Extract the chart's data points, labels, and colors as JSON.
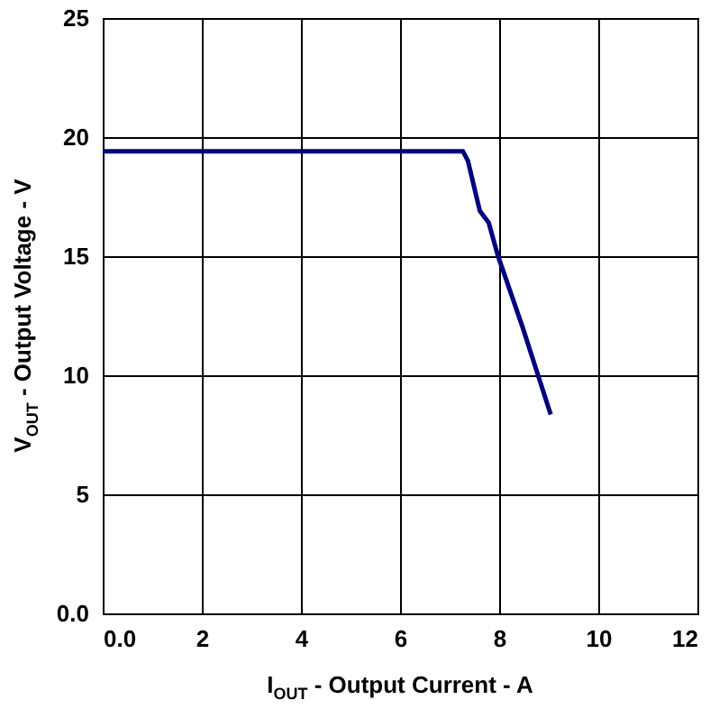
{
  "chart_data": {
    "type": "line",
    "xlabel": "I$_{OUT}$ - Output Current - A",
    "ylabel": "V$_{OUT}$ - Output Voltage - V",
    "x": [
      0,
      7.27,
      7.37,
      7.61,
      7.79,
      7.97,
      8.46,
      9.04
    ],
    "series": [
      {
        "color": "#000080",
        "values": [
          19.4,
          19.4,
          19.0,
          16.9,
          16.4,
          15.05,
          12.1,
          8.35
        ]
      }
    ],
    "xlim": [
      0,
      12
    ],
    "xticks": [
      {
        "value": 0,
        "label": "0.0"
      },
      2,
      4,
      6,
      8,
      10,
      12
    ],
    "ylim": [
      0,
      25
    ],
    "yticks": [
      {
        "value": 0,
        "label": "0.0"
      },
      5,
      10,
      15,
      20,
      25
    ],
    "grid": true,
    "marker": "none",
    "line_style": "solid"
  }
}
